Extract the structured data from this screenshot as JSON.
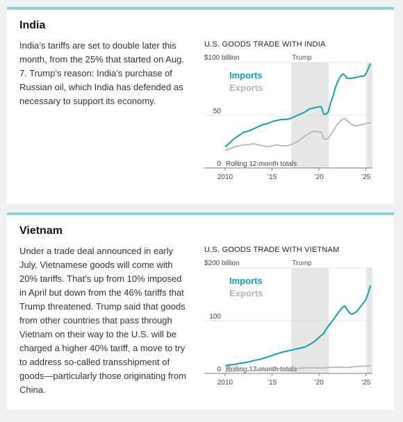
{
  "cards": [
    {
      "title": "India",
      "body": "India’s tariffs are set to double later this month, from the 25% that started on Aug. 7. Trump’s reason: India’s purchase of Russian oil, which India has defended as necessary to support its economy.",
      "chart_title": "U.S. GOODS TRADE WITH INDIA"
    },
    {
      "title": "Vietnam",
      "body": "Under a trade deal announced in early July, Vietnamese goods will come with 20% tariffs. That’s up from 10% imposed in April but down from the 46% tariffs that Trump threatened. Trump said that goods from other countries that pass through Vietnam on their way to the U.S. will be charged a higher 40% tariff, a move to try to address so-called transshipment of goods—particularly those originating from China.",
      "chart_title": "U.S. GOODS TRADE WITH VIETNAM"
    }
  ],
  "colors": {
    "imports": "#0e9fb4",
    "exports": "#b4b4b4",
    "shade": "#e7e7e7",
    "background": "#f0f1f2",
    "accent": "#8ed0d6"
  },
  "chart_data": [
    {
      "type": "line",
      "title": "U.S. GOODS TRADE WITH INDIA",
      "xlim": [
        2010,
        2025.7
      ],
      "ylim": [
        0,
        100
      ],
      "x_tick_labels": [
        "2010",
        "’15",
        "’20",
        "’25"
      ],
      "x_ticks": [
        2010,
        2015,
        2020,
        2025
      ],
      "y_tick_labels": [
        "$100 billion",
        "50",
        "0"
      ],
      "y_ticks": [
        100,
        50,
        0
      ],
      "shaded_periods": [
        {
          "label": "Trump",
          "from": 2017.05,
          "to": 2021.05
        },
        {
          "label": "",
          "from": 2025.05,
          "to": 2025.7
        }
      ],
      "annotation": "Rolling 12-month totals",
      "grid": true,
      "legend": "top-left",
      "series": [
        {
          "name": "Imports",
          "color": "#0e9fb4",
          "x": [
            2010,
            2010.5,
            2011,
            2011.5,
            2012,
            2012.5,
            2013,
            2013.5,
            2014,
            2014.5,
            2015,
            2015.5,
            2016,
            2016.5,
            2017,
            2017.5,
            2018,
            2018.5,
            2019,
            2019.5,
            2020,
            2020.25,
            2020.5,
            2020.75,
            2021,
            2021.25,
            2021.5,
            2021.75,
            2022,
            2022.25,
            2022.5,
            2022.75,
            2023,
            2023.5,
            2024,
            2024.5,
            2024.75,
            2025,
            2025.25,
            2025.5
          ],
          "y": [
            20,
            24,
            28,
            31,
            34,
            35,
            37,
            39,
            41,
            42,
            44,
            45,
            46,
            46,
            47,
            49,
            51,
            53,
            56,
            57,
            58,
            58,
            51,
            51,
            53,
            62,
            68,
            76,
            82,
            86,
            89,
            88,
            85,
            85,
            86,
            87,
            87,
            89,
            94,
            99
          ]
        },
        {
          "name": "Exports",
          "color": "#b4b4b4",
          "x": [
            2010,
            2010.5,
            2011,
            2011.5,
            2012,
            2012.5,
            2013,
            2013.5,
            2014,
            2014.5,
            2015,
            2015.5,
            2016,
            2016.5,
            2017,
            2017.5,
            2018,
            2018.5,
            2019,
            2019.5,
            2020,
            2020.25,
            2020.5,
            2020.75,
            2021,
            2021.5,
            2022,
            2022.5,
            2022.75,
            2023,
            2023.5,
            2024,
            2024.5,
            2025,
            2025.5
          ],
          "y": [
            17,
            18,
            20,
            21,
            22,
            22,
            23,
            22,
            21,
            20,
            21,
            22,
            21,
            21,
            22,
            24,
            27,
            30,
            33,
            35,
            34,
            34,
            28,
            27,
            28,
            35,
            42,
            46,
            47,
            45,
            41,
            40,
            41,
            42,
            43
          ]
        }
      ]
    },
    {
      "type": "line",
      "title": "U.S. GOODS TRADE WITH VIETNAM",
      "xlim": [
        2010,
        2025.7
      ],
      "ylim": [
        0,
        200
      ],
      "x_tick_labels": [
        "2010",
        "’15",
        "’20",
        "’25"
      ],
      "x_ticks": [
        2010,
        2015,
        2020,
        2025
      ],
      "y_tick_labels": [
        "$200 billion",
        "100",
        "0"
      ],
      "y_ticks": [
        200,
        100,
        0
      ],
      "shaded_periods": [
        {
          "label": "Trump",
          "from": 2017.05,
          "to": 2021.05
        },
        {
          "label": "",
          "from": 2025.05,
          "to": 2025.7
        }
      ],
      "annotation": "Rolling 12-month totals",
      "grid": true,
      "legend": "top-left",
      "series": [
        {
          "name": "Imports",
          "color": "#0e9fb4",
          "x": [
            2010,
            2010.5,
            2011,
            2011.5,
            2012,
            2012.5,
            2013,
            2013.5,
            2014,
            2014.5,
            2015,
            2015.5,
            2016,
            2016.5,
            2017,
            2017.5,
            2018,
            2018.5,
            2019,
            2019.5,
            2020,
            2020.5,
            2021,
            2021.5,
            2022,
            2022.5,
            2022.75,
            2023,
            2023.25,
            2023.5,
            2024,
            2024.5,
            2025,
            2025.25,
            2025.5
          ],
          "y": [
            15,
            16,
            17,
            19,
            20,
            22,
            24,
            26,
            28,
            31,
            34,
            37,
            40,
            42,
            44,
            46,
            48,
            50,
            55,
            60,
            68,
            76,
            90,
            101,
            114,
            125,
            128,
            121,
            115,
            112,
            117,
            128,
            140,
            152,
            167
          ]
        },
        {
          "name": "Exports",
          "color": "#b4b4b4",
          "x": [
            2010,
            2011,
            2012,
            2013,
            2014,
            2015,
            2016,
            2017,
            2018,
            2019,
            2020,
            2021,
            2022,
            2023,
            2024,
            2025,
            2025.5
          ],
          "y": [
            4,
            4.5,
            5,
            5,
            6,
            7,
            9,
            9,
            10,
            11,
            10,
            11,
            12,
            11,
            13,
            14,
            15
          ]
        }
      ]
    }
  ]
}
